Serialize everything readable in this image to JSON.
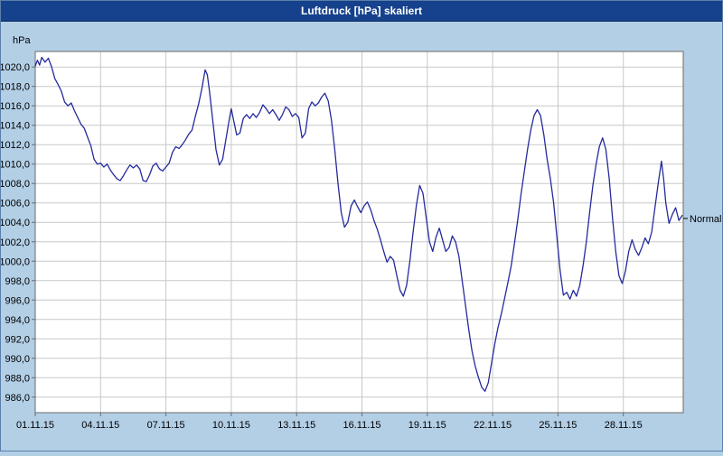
{
  "window": {
    "title": "Luftdruck [hPa] skaliert"
  },
  "chart_data": {
    "type": "line",
    "title": "Luftdruck [hPa] skaliert",
    "legend": "none",
    "grid": "on",
    "colors": {
      "background": "#b3cfe6",
      "titlebar": "#16418c",
      "plot_bg": "#ffffff",
      "grid": "#c8c8c8",
      "plot_border": "#6b6b6b",
      "line": "#252a9d",
      "text": "#000000"
    },
    "y_axis": {
      "unit_label": "hPa",
      "min": 984.4,
      "max": 1021.6,
      "tick_start": 986,
      "tick_end": 1020,
      "tick_step": 2,
      "decimal_comma": true
    },
    "x_axis": {
      "min": 1,
      "max": 30.75,
      "ticks": [
        {
          "x": 1,
          "label": "01.11.15"
        },
        {
          "x": 4,
          "label": "04.11.15"
        },
        {
          "x": 7,
          "label": "07.11.15"
        },
        {
          "x": 10,
          "label": "10.11.15"
        },
        {
          "x": 13,
          "label": "13.11.15"
        },
        {
          "x": 16,
          "label": "16.11.15"
        },
        {
          "x": 19,
          "label": "19.11.15"
        },
        {
          "x": 22,
          "label": "22.11.15"
        },
        {
          "x": 25,
          "label": "25.11.15"
        },
        {
          "x": 28,
          "label": "28.11.15"
        }
      ]
    },
    "annotations": [
      {
        "label": "Normal",
        "y": 1004.4
      }
    ],
    "series": [
      {
        "name": "Luftdruck",
        "color": "#252a9d",
        "points": [
          [
            1.0,
            1020.1
          ],
          [
            1.1,
            1020.7
          ],
          [
            1.2,
            1020.2
          ],
          [
            1.3,
            1021.0
          ],
          [
            1.45,
            1020.5
          ],
          [
            1.6,
            1020.9
          ],
          [
            1.75,
            1020.0
          ],
          [
            1.9,
            1018.8
          ],
          [
            2.05,
            1018.2
          ],
          [
            2.2,
            1017.5
          ],
          [
            2.35,
            1016.4
          ],
          [
            2.5,
            1016.0
          ],
          [
            2.65,
            1016.3
          ],
          [
            2.8,
            1015.5
          ],
          [
            2.95,
            1014.8
          ],
          [
            3.1,
            1014.1
          ],
          [
            3.25,
            1013.7
          ],
          [
            3.4,
            1012.8
          ],
          [
            3.55,
            1011.9
          ],
          [
            3.7,
            1010.5
          ],
          [
            3.85,
            1010.0
          ],
          [
            4.0,
            1010.1
          ],
          [
            4.15,
            1009.7
          ],
          [
            4.3,
            1010.0
          ],
          [
            4.45,
            1009.4
          ],
          [
            4.6,
            1008.9
          ],
          [
            4.75,
            1008.5
          ],
          [
            4.9,
            1008.3
          ],
          [
            5.05,
            1008.8
          ],
          [
            5.2,
            1009.4
          ],
          [
            5.35,
            1009.9
          ],
          [
            5.5,
            1009.6
          ],
          [
            5.65,
            1009.9
          ],
          [
            5.8,
            1009.5
          ],
          [
            5.95,
            1008.3
          ],
          [
            6.1,
            1008.2
          ],
          [
            6.25,
            1008.9
          ],
          [
            6.4,
            1009.8
          ],
          [
            6.55,
            1010.1
          ],
          [
            6.7,
            1009.5
          ],
          [
            6.85,
            1009.3
          ],
          [
            7.0,
            1009.7
          ],
          [
            7.15,
            1010.1
          ],
          [
            7.3,
            1011.2
          ],
          [
            7.45,
            1011.8
          ],
          [
            7.6,
            1011.6
          ],
          [
            7.75,
            1012.0
          ],
          [
            7.9,
            1012.5
          ],
          [
            8.05,
            1013.1
          ],
          [
            8.2,
            1013.5
          ],
          [
            8.35,
            1014.9
          ],
          [
            8.5,
            1016.2
          ],
          [
            8.65,
            1017.8
          ],
          [
            8.8,
            1019.7
          ],
          [
            8.9,
            1019.2
          ],
          [
            9.0,
            1017.5
          ],
          [
            9.15,
            1014.5
          ],
          [
            9.3,
            1011.5
          ],
          [
            9.45,
            1009.9
          ],
          [
            9.6,
            1010.5
          ],
          [
            9.75,
            1012.5
          ],
          [
            9.9,
            1014.5
          ],
          [
            10.0,
            1015.7
          ],
          [
            10.1,
            1014.6
          ],
          [
            10.25,
            1013.0
          ],
          [
            10.4,
            1013.2
          ],
          [
            10.55,
            1014.7
          ],
          [
            10.7,
            1015.1
          ],
          [
            10.85,
            1014.7
          ],
          [
            11.0,
            1015.2
          ],
          [
            11.15,
            1014.8
          ],
          [
            11.3,
            1015.3
          ],
          [
            11.45,
            1016.1
          ],
          [
            11.6,
            1015.7
          ],
          [
            11.75,
            1015.2
          ],
          [
            11.9,
            1015.6
          ],
          [
            12.05,
            1015.1
          ],
          [
            12.2,
            1014.5
          ],
          [
            12.35,
            1015.1
          ],
          [
            12.5,
            1015.9
          ],
          [
            12.65,
            1015.6
          ],
          [
            12.8,
            1014.9
          ],
          [
            12.95,
            1015.2
          ],
          [
            13.1,
            1014.8
          ],
          [
            13.25,
            1012.7
          ],
          [
            13.4,
            1013.2
          ],
          [
            13.55,
            1015.7
          ],
          [
            13.7,
            1016.4
          ],
          [
            13.85,
            1016.0
          ],
          [
            14.0,
            1016.3
          ],
          [
            14.15,
            1016.9
          ],
          [
            14.3,
            1017.3
          ],
          [
            14.45,
            1016.5
          ],
          [
            14.6,
            1014.5
          ],
          [
            14.75,
            1011.5
          ],
          [
            14.9,
            1008.0
          ],
          [
            15.05,
            1005.0
          ],
          [
            15.2,
            1003.5
          ],
          [
            15.35,
            1004.0
          ],
          [
            15.5,
            1005.7
          ],
          [
            15.65,
            1006.3
          ],
          [
            15.8,
            1005.6
          ],
          [
            15.95,
            1005.0
          ],
          [
            16.1,
            1005.7
          ],
          [
            16.25,
            1006.1
          ],
          [
            16.4,
            1005.3
          ],
          [
            16.55,
            1004.2
          ],
          [
            16.7,
            1003.3
          ],
          [
            16.85,
            1002.2
          ],
          [
            17.0,
            1001.0
          ],
          [
            17.15,
            999.9
          ],
          [
            17.3,
            1000.5
          ],
          [
            17.45,
            1000.1
          ],
          [
            17.6,
            998.5
          ],
          [
            17.75,
            997.0
          ],
          [
            17.9,
            996.4
          ],
          [
            18.05,
            997.5
          ],
          [
            18.2,
            1000.0
          ],
          [
            18.35,
            1003.0
          ],
          [
            18.5,
            1005.8
          ],
          [
            18.65,
            1007.8
          ],
          [
            18.8,
            1007.0
          ],
          [
            18.95,
            1004.5
          ],
          [
            19.1,
            1002.0
          ],
          [
            19.25,
            1001.0
          ],
          [
            19.4,
            1002.5
          ],
          [
            19.55,
            1003.4
          ],
          [
            19.7,
            1002.2
          ],
          [
            19.85,
            1001.0
          ],
          [
            20.0,
            1001.4
          ],
          [
            20.15,
            1002.6
          ],
          [
            20.3,
            1002.0
          ],
          [
            20.45,
            1000.5
          ],
          [
            20.6,
            998.0
          ],
          [
            20.75,
            995.5
          ],
          [
            20.9,
            993.0
          ],
          [
            21.05,
            990.8
          ],
          [
            21.2,
            989.2
          ],
          [
            21.35,
            988.0
          ],
          [
            21.5,
            987.0
          ],
          [
            21.65,
            986.6
          ],
          [
            21.8,
            987.5
          ],
          [
            21.95,
            989.5
          ],
          [
            22.1,
            991.5
          ],
          [
            22.25,
            993.2
          ],
          [
            22.4,
            994.6
          ],
          [
            22.55,
            996.2
          ],
          [
            22.7,
            997.8
          ],
          [
            22.85,
            999.5
          ],
          [
            23.0,
            1001.8
          ],
          [
            23.15,
            1004.2
          ],
          [
            23.3,
            1006.8
          ],
          [
            23.45,
            1009.2
          ],
          [
            23.6,
            1011.5
          ],
          [
            23.75,
            1013.5
          ],
          [
            23.9,
            1015.0
          ],
          [
            24.05,
            1015.6
          ],
          [
            24.2,
            1015.0
          ],
          [
            24.35,
            1013.0
          ],
          [
            24.5,
            1010.5
          ],
          [
            24.65,
            1008.5
          ],
          [
            24.8,
            1006.0
          ],
          [
            24.95,
            1002.5
          ],
          [
            25.1,
            999.0
          ],
          [
            25.25,
            996.5
          ],
          [
            25.4,
            996.8
          ],
          [
            25.55,
            996.1
          ],
          [
            25.7,
            997.0
          ],
          [
            25.85,
            996.4
          ],
          [
            26.0,
            997.5
          ],
          [
            26.15,
            999.5
          ],
          [
            26.3,
            1002.0
          ],
          [
            26.45,
            1005.0
          ],
          [
            26.6,
            1007.8
          ],
          [
            26.75,
            1010.0
          ],
          [
            26.9,
            1011.8
          ],
          [
            27.05,
            1012.7
          ],
          [
            27.2,
            1011.5
          ],
          [
            27.35,
            1008.5
          ],
          [
            27.5,
            1004.5
          ],
          [
            27.65,
            1001.0
          ],
          [
            27.8,
            998.5
          ],
          [
            27.95,
            997.7
          ],
          [
            28.1,
            999.0
          ],
          [
            28.25,
            1001.0
          ],
          [
            28.4,
            1002.2
          ],
          [
            28.55,
            1001.2
          ],
          [
            28.7,
            1000.6
          ],
          [
            28.85,
            1001.4
          ],
          [
            29.0,
            1002.4
          ],
          [
            29.15,
            1001.8
          ],
          [
            29.3,
            1003.0
          ],
          [
            29.45,
            1005.5
          ],
          [
            29.6,
            1008.0
          ],
          [
            29.75,
            1010.3
          ],
          [
            29.85,
            1008.5
          ],
          [
            29.95,
            1006.0
          ],
          [
            30.1,
            1003.9
          ],
          [
            30.25,
            1004.8
          ],
          [
            30.4,
            1005.5
          ],
          [
            30.55,
            1004.2
          ],
          [
            30.7,
            1004.7
          ]
        ]
      }
    ]
  }
}
